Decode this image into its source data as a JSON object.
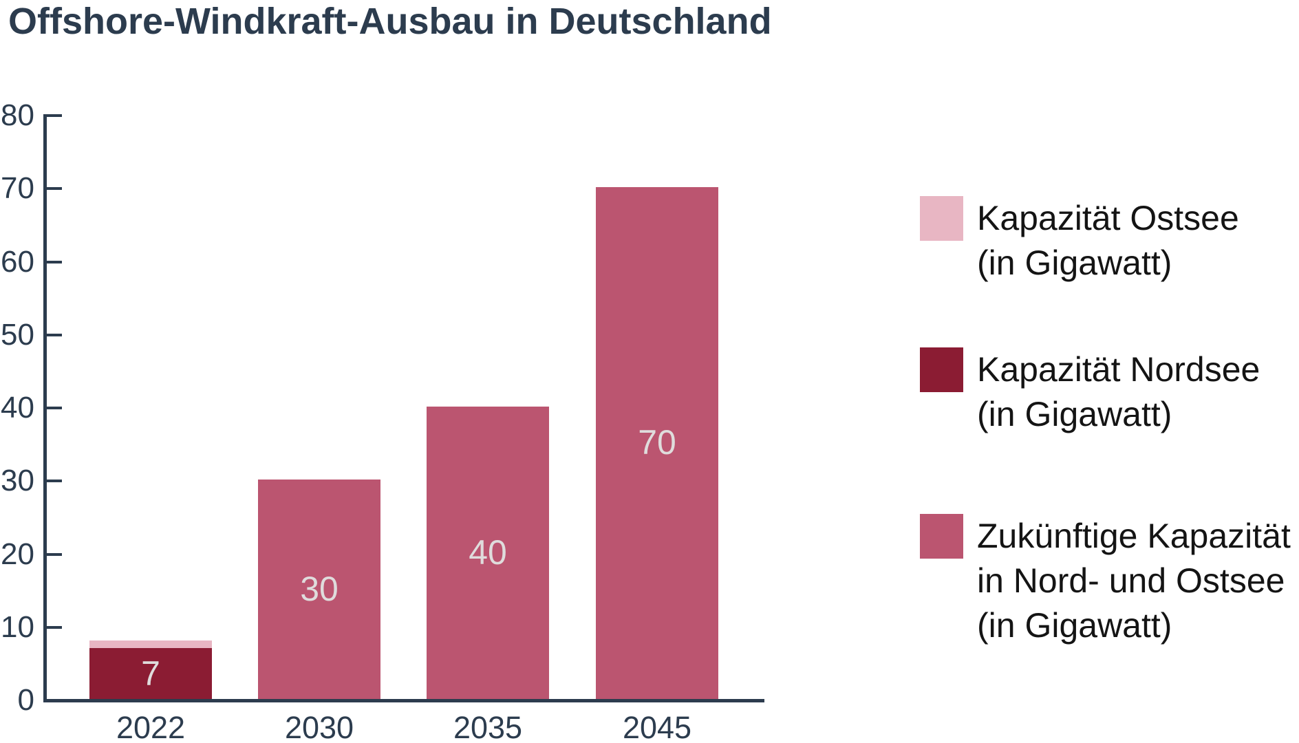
{
  "title": "Offshore-Windkraft-Ausbau in Deutschland",
  "colors": {
    "axis": "#2c3c4e",
    "title_text": "#2c3c4e",
    "bar_value_label": "#dfdcdc",
    "legend_text": "#141414",
    "ostsee": "#e8b6c3",
    "nordsee": "#8b1c33",
    "zukunft": "#bb5570",
    "background": "#ffffff"
  },
  "chart_data": {
    "type": "bar",
    "stacked": true,
    "title": "Offshore-Windkraft-Ausbau in Deutschland",
    "categories": [
      "2022",
      "2030",
      "2035",
      "2045"
    ],
    "series": [
      {
        "name": "Kapazität Nordsee (in Gigawatt)",
        "key": "nordsee",
        "color": "#8b1c33",
        "values": [
          7,
          0,
          0,
          0
        ]
      },
      {
        "name": "Kapazität Ostsee (in Gigawatt)",
        "key": "ostsee",
        "color": "#e8b6c3",
        "values": [
          1,
          0,
          0,
          0
        ]
      },
      {
        "name": "Zukünftige Kapazität in Nord- und Ostsee (in Gigawatt)",
        "key": "zukunft",
        "color": "#bb5570",
        "values": [
          0,
          30,
          40,
          70
        ]
      }
    ],
    "bar_value_labels": [
      "7",
      "30",
      "40",
      "70"
    ],
    "xlabel": "",
    "ylabel": "",
    "ylim": [
      0,
      80
    ],
    "yticks": [
      0,
      10,
      20,
      30,
      40,
      50,
      60,
      70,
      80
    ],
    "ytick_labels": [
      "0",
      "10",
      "20",
      "30",
      "40",
      "50",
      "60",
      "70",
      "80"
    ],
    "grid": false,
    "legend_position": "right"
  },
  "legend": {
    "items": [
      {
        "key": "ostsee",
        "color": "#e8b6c3",
        "label": "Kapazität Ostsee (in Gigawatt)",
        "label_lines": [
          "Kapazität Ostsee",
          "(in Gigawatt)"
        ]
      },
      {
        "key": "nordsee",
        "color": "#8b1c33",
        "label": "Kapazität Nordsee (in Gigawatt)",
        "label_lines": [
          "Kapazität Nordsee",
          "(in Gigawatt)"
        ]
      },
      {
        "key": "zukunft",
        "color": "#bb5570",
        "label": "Zukünftige Kapazität in Nord- und Ostsee (in Gigawatt)",
        "label_lines": [
          "Zukünftige Kapazität",
          "in Nord- und Ostsee",
          "(in Gigawatt)"
        ]
      }
    ]
  }
}
